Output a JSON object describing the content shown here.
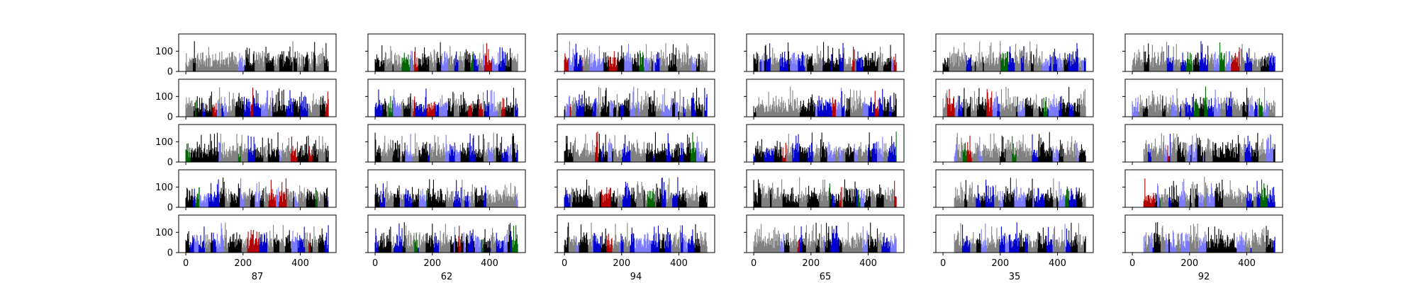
{
  "chart_data": {
    "type": "bar",
    "layout": "grid of small-multiple bar charts, 5 rows by 6 columns, shared x and y axes",
    "rows": 5,
    "columns": 6,
    "x_range": [
      -25,
      525
    ],
    "y_range": [
      0,
      185
    ],
    "bar_count_per_panel": 500,
    "x_ticks": [
      0,
      200,
      400
    ],
    "x_tick_labels": [
      "0",
      "200",
      "400"
    ],
    "y_ticks": [
      0,
      100
    ],
    "y_tick_labels": [
      "0",
      "100"
    ],
    "column_labels": [
      "87",
      "62",
      "94",
      "65",
      "35",
      "92"
    ],
    "bar_colors": {
      "black": "#000000",
      "gray": "#808080",
      "blue": "#0000cd",
      "light_blue": "#7a7aff",
      "red": "#b30000",
      "green": "#006400"
    },
    "bar_values_note": "",
    "grid": false,
    "legend": "none"
  }
}
